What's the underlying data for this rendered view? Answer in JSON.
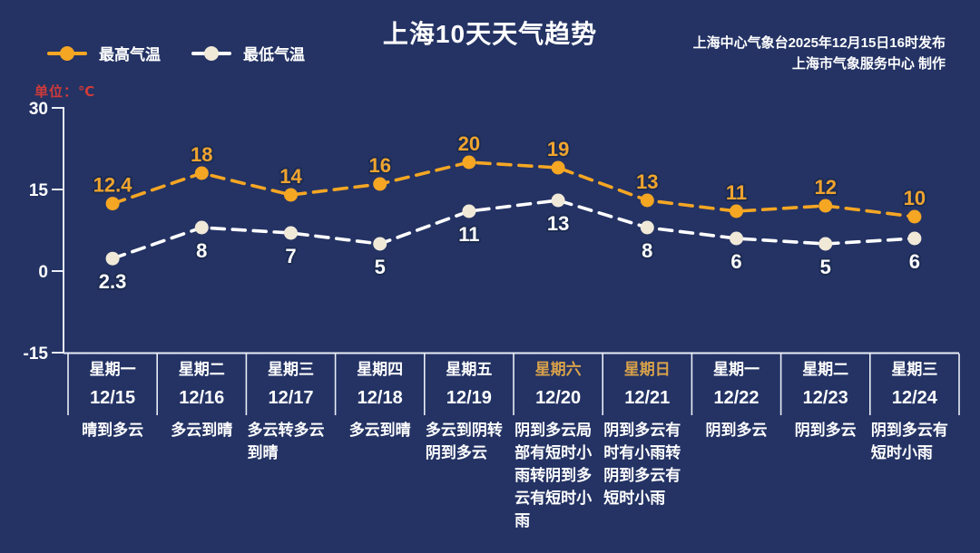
{
  "header": {
    "title": "上海10天天气趋势",
    "source_line1": "上海中心气象台2025年12月15日16时发布",
    "source_line2": "上海市气象服务中心  制作"
  },
  "unit_label": "单位：℃",
  "colors": {
    "background": "#243364",
    "axis": "#e9edf5",
    "high_line": "#f5a623",
    "high_label": "#f0a42e",
    "low_line": "#ffffff",
    "low_dot": "#f1e9d8",
    "low_label": "#ffffff",
    "weekend_label": "#d9a24a",
    "weekday_label": "#ffffff",
    "unit_label_color": "#cf3a3a",
    "label_outline": "#1c2b52"
  },
  "chart_data": {
    "type": "line",
    "title": "上海10天天气趋势",
    "ylabel": "℃",
    "ylim": [
      -15,
      30
    ],
    "yticks": [
      30,
      15,
      0,
      -15
    ],
    "grid": false,
    "legend_position": "top-left",
    "categories": [
      {
        "week": "星期一",
        "date": "12/15",
        "weather": "晴到多云",
        "weekend": false
      },
      {
        "week": "星期二",
        "date": "12/16",
        "weather": "多云到晴",
        "weekend": false
      },
      {
        "week": "星期三",
        "date": "12/17",
        "weather": "多云转多云到晴",
        "weekend": false
      },
      {
        "week": "星期四",
        "date": "12/18",
        "weather": "多云到晴",
        "weekend": false
      },
      {
        "week": "星期五",
        "date": "12/19",
        "weather": "多云到阴转阴到多云",
        "weekend": false
      },
      {
        "week": "星期六",
        "date": "12/20",
        "weather": "阴到多云局部有短时小雨转阴到多云有短时小雨",
        "weekend": true
      },
      {
        "week": "星期日",
        "date": "12/21",
        "weather": "阴到多云有时有小雨转阴到多云有短时小雨",
        "weekend": true
      },
      {
        "week": "星期一",
        "date": "12/22",
        "weather": "阴到多云",
        "weekend": false
      },
      {
        "week": "星期二",
        "date": "12/23",
        "weather": "阴到多云",
        "weekend": false
      },
      {
        "week": "星期三",
        "date": "12/24",
        "weather": "阴到多云有短时小雨",
        "weekend": false
      }
    ],
    "series": [
      {
        "name": "最高气温",
        "values": [
          12.4,
          18,
          14,
          16,
          20,
          19,
          13,
          11,
          12,
          10
        ]
      },
      {
        "name": "最低气温",
        "values": [
          2.3,
          8,
          7,
          5,
          11,
          13,
          8,
          6,
          5,
          6
        ]
      }
    ]
  }
}
